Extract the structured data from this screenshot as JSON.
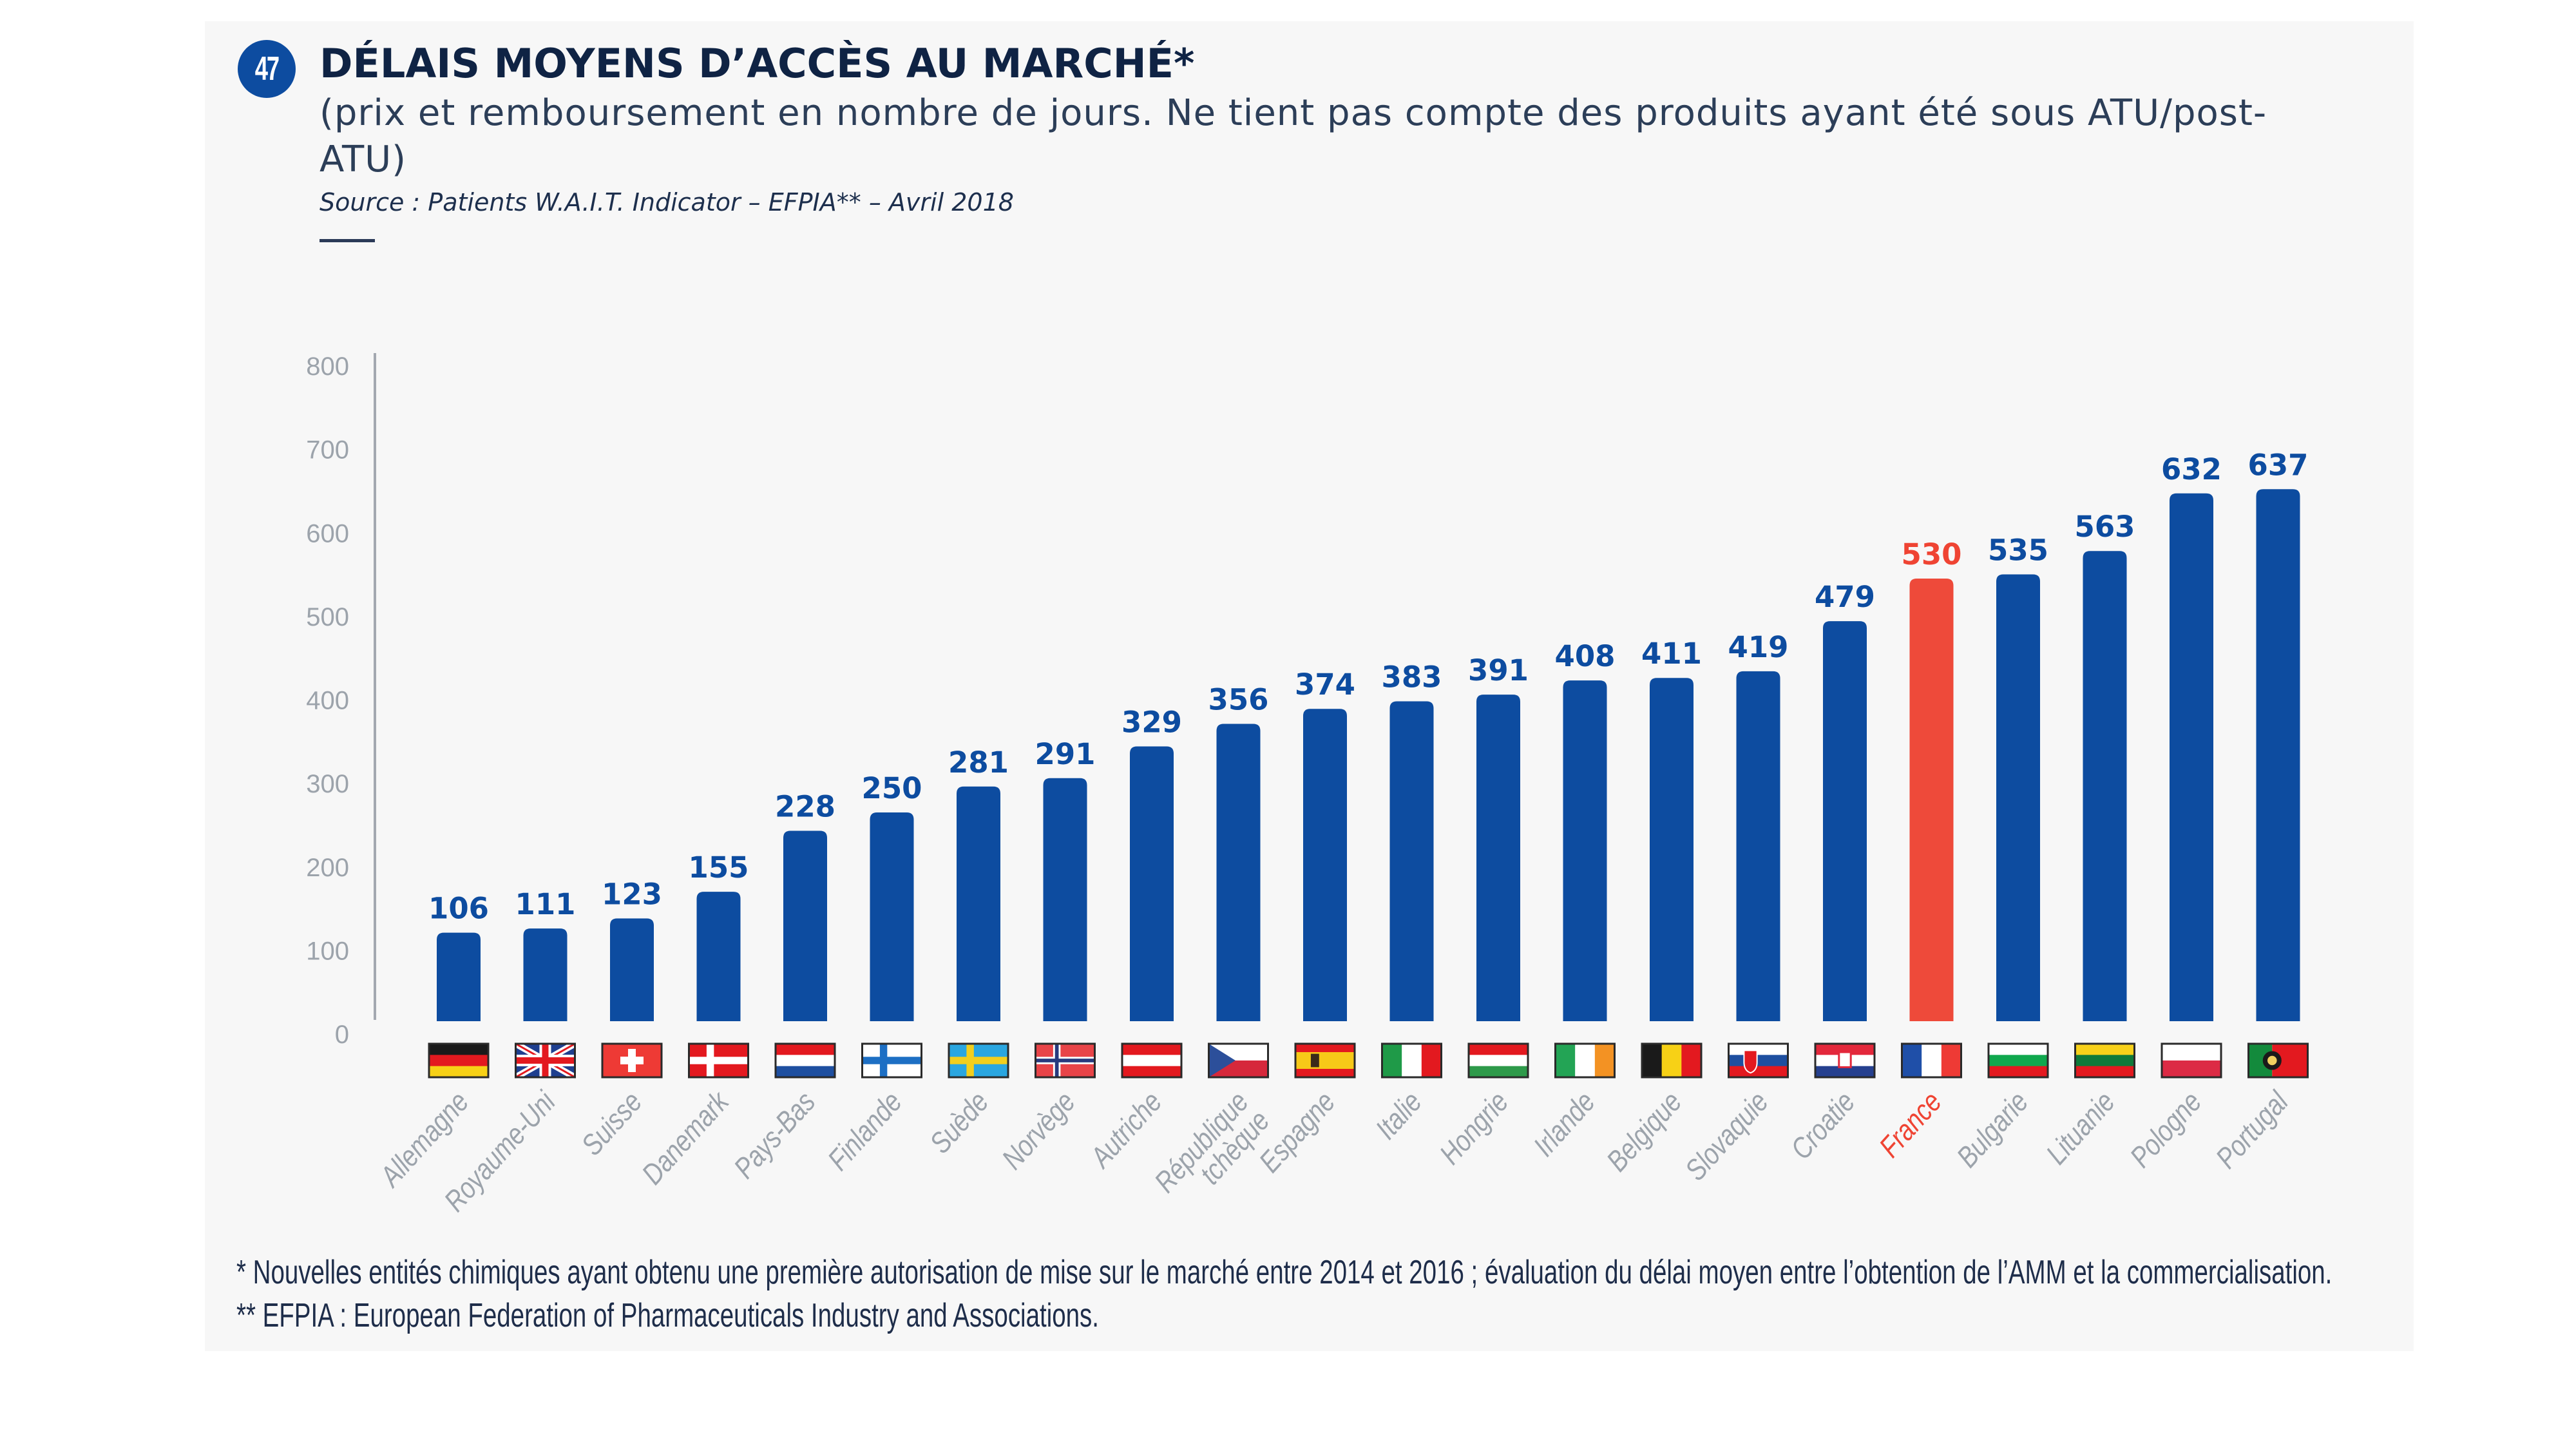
{
  "header": {
    "badge_number": "47",
    "title": "DÉLAIS MOYENS D’ACCÈS AU MARCHÉ*",
    "subtitle": "(prix et remboursement en nombre de jours. Ne tient pas compte des produits ayant été sous ATU/post-ATU)",
    "source": "Source : Patients W.A.I.T. Indicator – EFPIA** – Avril 2018"
  },
  "footnotes": [
    "* Nouvelles entités chimiques ayant obtenu une première autorisation de mise sur le marché entre 2014 et 2016 ; évaluation du délai moyen entre l’obtention de l’AMM et la commercialisation.",
    "** EFPIA : European Federation of Pharmaceuticals Industry and Associations."
  ],
  "colors": {
    "bar": "#0d4ca0",
    "highlight": "#ee4a3a",
    "value_label": "#0d4ca0",
    "highlight_label": "#ef4433",
    "category_label": "#9ca3ab",
    "axis": "#9aa0a8"
  },
  "chart_data": {
    "type": "bar",
    "title": "DÉLAIS MOYENS D’ACCÈS AU MARCHÉ*",
    "xlabel": "",
    "ylabel": "",
    "ylim": [
      0,
      800
    ],
    "yticks": [
      0,
      100,
      200,
      300,
      400,
      500,
      600,
      700,
      800
    ],
    "grid": false,
    "highlight_category": "France",
    "categories": [
      "Allemagne",
      "Royaume-Uni",
      "Suisse",
      "Danemark",
      "Pays-Bas",
      "Finlande",
      "Suède",
      "Norvège",
      "Autriche",
      "République tchèque",
      "Espagne",
      "Italie",
      "Hongrie",
      "Irlande",
      "Belgique",
      "Slovaquie",
      "Croatie",
      "France",
      "Bulgarie",
      "Lituanie",
      "Pologne",
      "Portugal"
    ],
    "flags": [
      "de",
      "gb",
      "ch",
      "dk",
      "nl",
      "fi",
      "se",
      "no",
      "at",
      "cz",
      "es",
      "it",
      "hu",
      "ie",
      "be",
      "sk",
      "hr",
      "fr",
      "bg",
      "lt",
      "pl",
      "pt"
    ],
    "values": [
      106,
      111,
      123,
      155,
      228,
      250,
      281,
      291,
      329,
      356,
      374,
      383,
      391,
      408,
      411,
      419,
      479,
      530,
      535,
      563,
      632,
      637
    ]
  }
}
